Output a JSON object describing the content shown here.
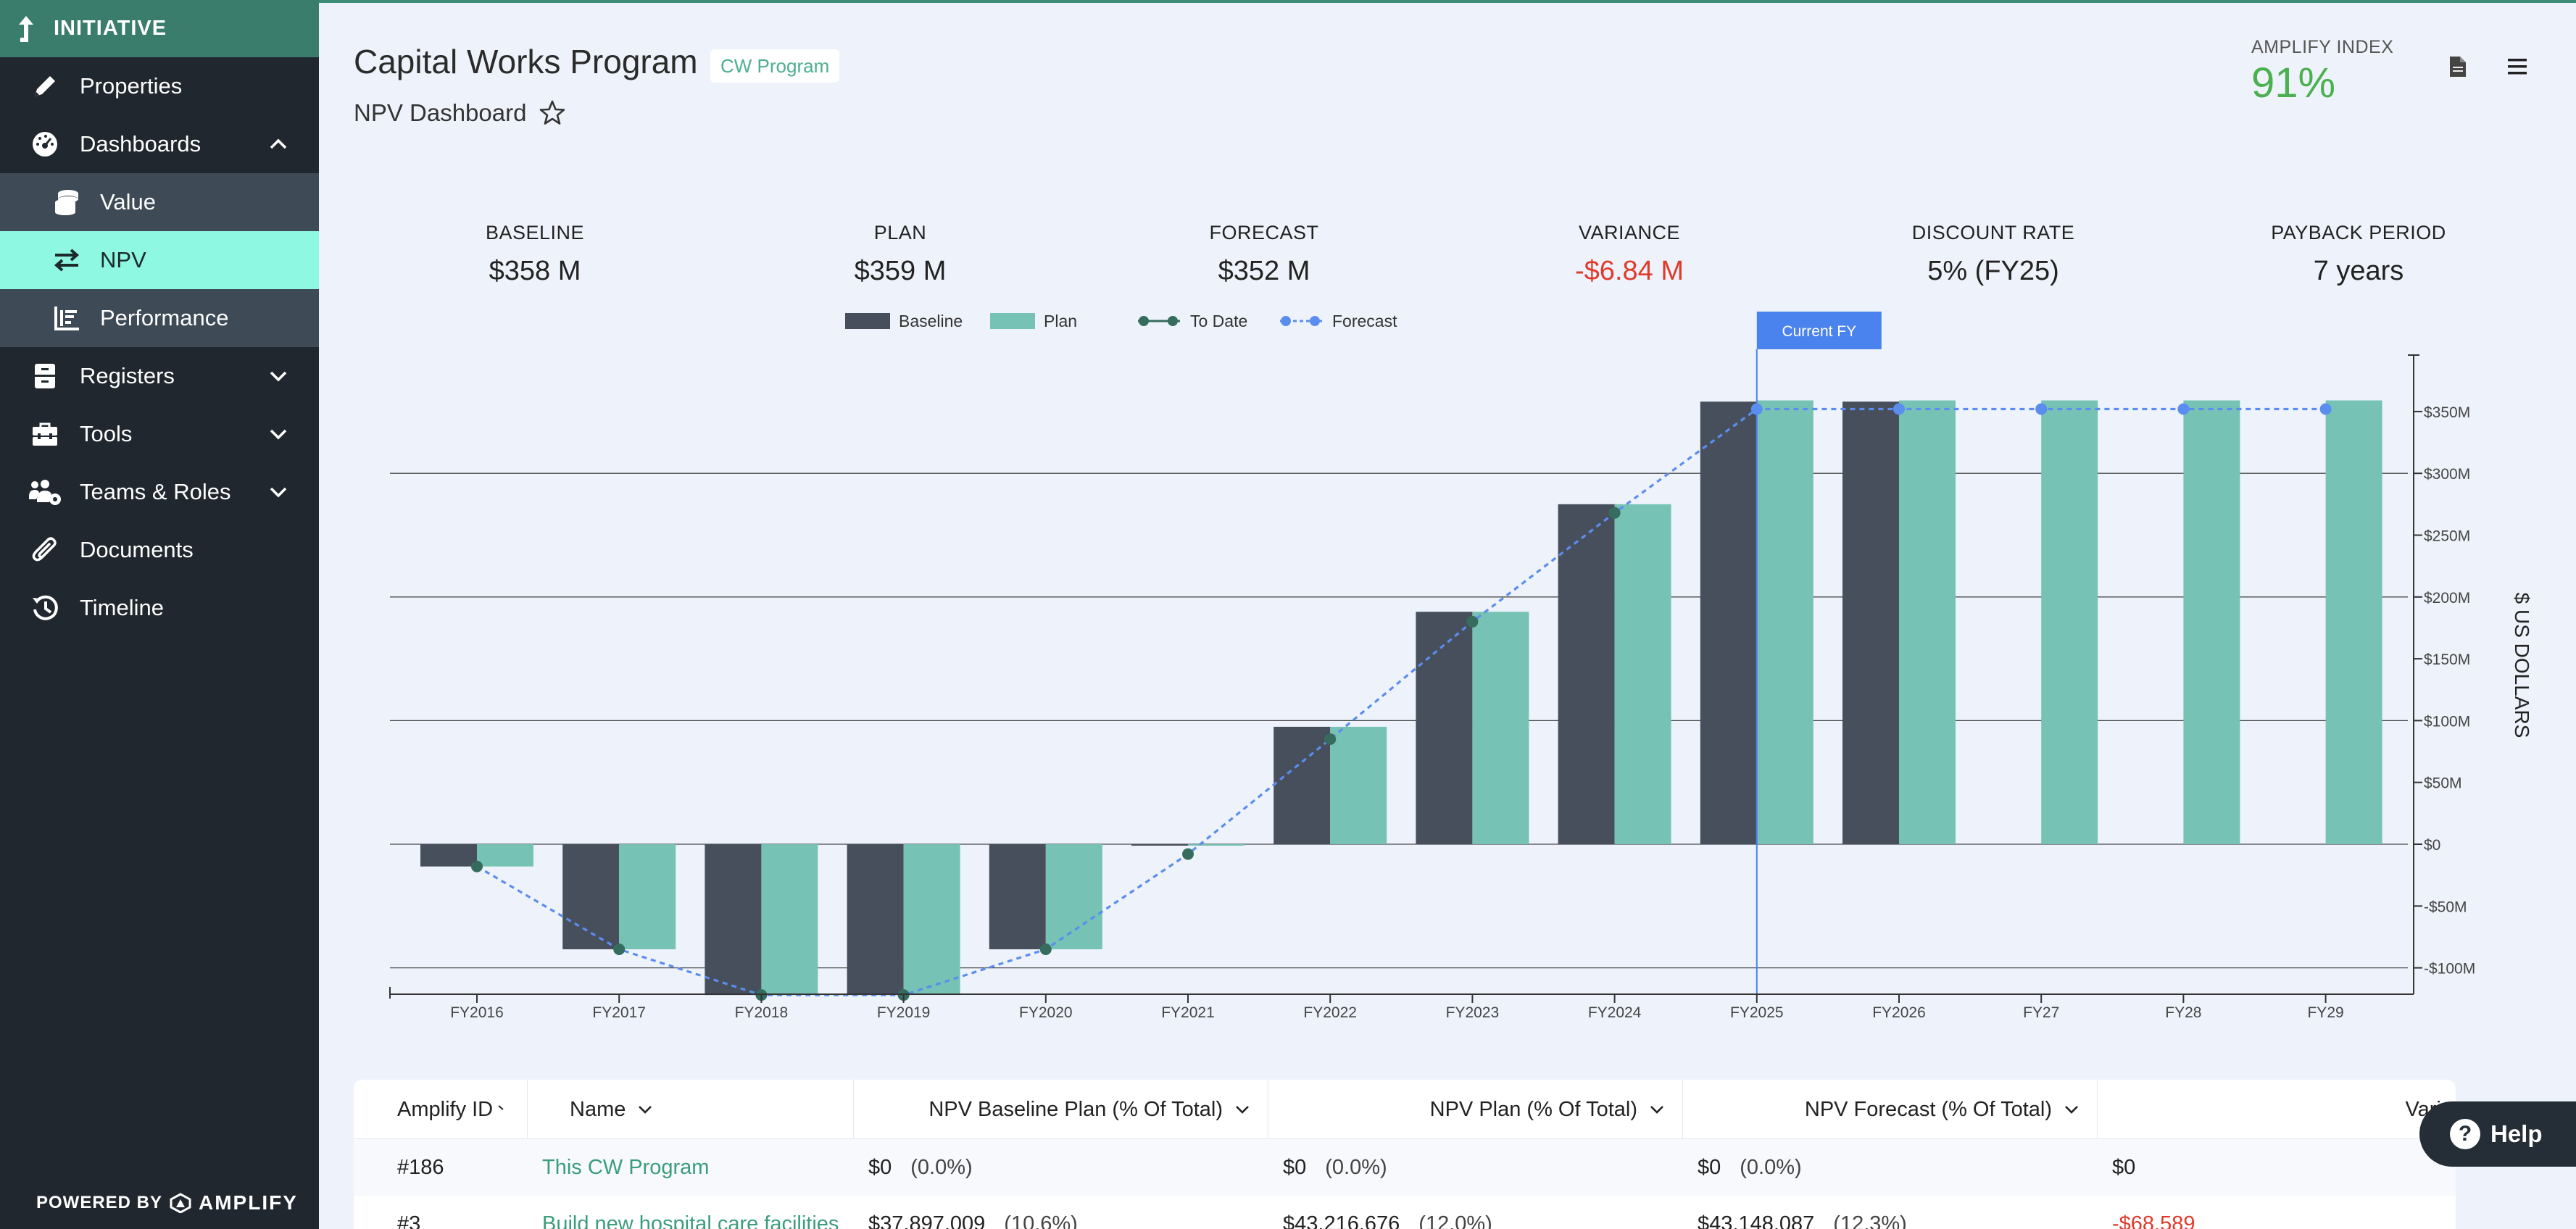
{
  "sidebar": {
    "header": "INITIATIVE",
    "items": [
      {
        "label": "Properties"
      },
      {
        "label": "Dashboards"
      },
      {
        "label": "Value"
      },
      {
        "label": "NPV"
      },
      {
        "label": "Performance"
      },
      {
        "label": "Registers"
      },
      {
        "label": "Tools"
      },
      {
        "label": "Teams & Roles"
      },
      {
        "label": "Documents"
      },
      {
        "label": "Timeline"
      }
    ],
    "powered_by": "POWERED BY",
    "brand": "AMPLIFY"
  },
  "header": {
    "title": "Capital Works Program",
    "tag": "CW Program",
    "subtitle": "NPV Dashboard",
    "amplify_index_label": "AMPLIFY INDEX",
    "amplify_index_value": "91%",
    "index_color": "#4caf50"
  },
  "kpis": [
    {
      "label": "BASELINE",
      "value": "$358 M"
    },
    {
      "label": "PLAN",
      "value": "$359 M"
    },
    {
      "label": "FORECAST",
      "value": "$352 M"
    },
    {
      "label": "VARIANCE",
      "value": "-$6.84 M"
    },
    {
      "label": "DISCOUNT RATE",
      "value": "5% (FY25)"
    },
    {
      "label": "PAYBACK PERIOD",
      "value": "7 years"
    }
  ],
  "chart_data": {
    "type": "bar",
    "categories": [
      "FY2016",
      "FY2017",
      "FY2018",
      "FY2019",
      "FY2020",
      "FY2021",
      "FY2022",
      "FY2023",
      "FY2024",
      "FY2025",
      "FY2026",
      "FY27",
      "FY28",
      "FY29"
    ],
    "series": [
      {
        "name": "Baseline",
        "kind": "bar",
        "color": "#474f5c",
        "values": [
          -18,
          -85,
          -122,
          -122,
          -85,
          -1,
          95,
          188,
          275,
          358,
          358,
          null,
          null,
          null
        ]
      },
      {
        "name": "Plan",
        "kind": "bar",
        "color": "#76c2b4",
        "values": [
          -18,
          -85,
          -122,
          -122,
          -85,
          0,
          95,
          188,
          275,
          359,
          359,
          359,
          359,
          359
        ]
      },
      {
        "name": "To Date",
        "kind": "line",
        "color": "#356c5e",
        "values": [
          -18,
          -85,
          -122,
          -122,
          -85,
          -8,
          85,
          180,
          268,
          null,
          null,
          null,
          null,
          null
        ]
      },
      {
        "name": "Forecast",
        "kind": "dashed-line",
        "color": "#5b8def",
        "values": [
          -18,
          -85,
          -122,
          -122,
          -85,
          -8,
          85,
          180,
          268,
          352,
          352,
          352,
          352,
          352
        ]
      }
    ],
    "ylabel": "$ US DOLLARS",
    "ylim": [
      -120,
      395
    ],
    "yticks": [
      -100,
      -50,
      0,
      50,
      100,
      150,
      200,
      250,
      300,
      350
    ],
    "ytick_labels": [
      "-$100M",
      "-$50M",
      "$0",
      "$50M",
      "$100M",
      "$150M",
      "$200M",
      "$250M",
      "$300M",
      "$350M"
    ],
    "gridlines": [
      -100,
      0,
      100,
      200,
      300
    ],
    "marker_label": "Current FY",
    "marker_category": "FY2025",
    "legend_position": "top-center"
  },
  "table": {
    "columns": [
      {
        "label": "Amplify ID"
      },
      {
        "label": "Name"
      },
      {
        "label": "NPV Baseline Plan (% Of Total)"
      },
      {
        "label": "NPV Plan (% Of Total)"
      },
      {
        "label": "NPV Forecast (% Of Total)"
      },
      {
        "label": "Varia"
      }
    ],
    "rows": [
      {
        "id": "#186",
        "name": "This CW Program",
        "baseline": "$0",
        "baseline_pct": "(0.0%)",
        "plan": "$0",
        "plan_pct": "(0.0%)",
        "forecast": "$0",
        "forecast_pct": "(0.0%)",
        "variance": "$0"
      },
      {
        "id": "#3",
        "name": "Build new hospital care facilities",
        "baseline": "$37,897,009",
        "baseline_pct": "(10.6%)",
        "plan": "$43,216,676",
        "plan_pct": "(12.0%)",
        "forecast": "$43,148,087",
        "forecast_pct": "(12.3%)",
        "variance": "-$68,589"
      }
    ]
  },
  "help": {
    "label": "Help"
  }
}
